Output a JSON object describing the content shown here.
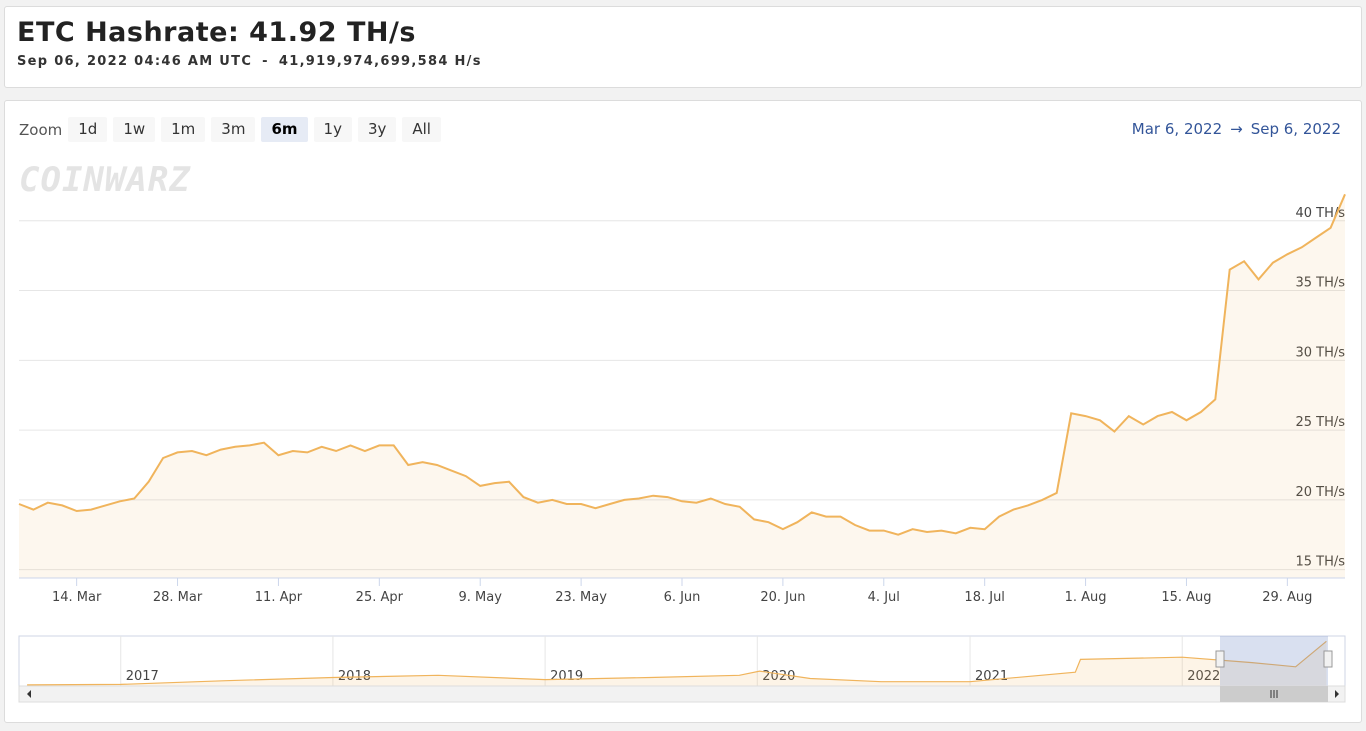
{
  "header": {
    "title": "ETC Hashrate: 41.92 TH/s",
    "timestamp": "Sep 06, 2022 04:46 AM UTC",
    "separator": "-",
    "hashrate_hs": "41,919,974,699,584 H/s"
  },
  "toolbar": {
    "zoom_label": "Zoom",
    "buttons": [
      "1d",
      "1w",
      "1m",
      "3m",
      "6m",
      "1y",
      "3y",
      "All"
    ],
    "selected": 4,
    "range_from": "Mar 6, 2022",
    "range_arrow": "→",
    "range_to": "Sep 6, 2022"
  },
  "watermark": "COINWARZ",
  "chart_data": [
    {
      "type": "area",
      "color": "#f0b45c",
      "x": [
        "2022-03-06",
        "2022-03-08",
        "2022-03-10",
        "2022-03-12",
        "2022-03-14",
        "2022-03-16",
        "2022-03-18",
        "2022-03-20",
        "2022-03-22",
        "2022-03-24",
        "2022-03-26",
        "2022-03-28",
        "2022-03-30",
        "2022-04-01",
        "2022-04-03",
        "2022-04-05",
        "2022-04-07",
        "2022-04-09",
        "2022-04-11",
        "2022-04-13",
        "2022-04-15",
        "2022-04-17",
        "2022-04-19",
        "2022-04-21",
        "2022-04-23",
        "2022-04-25",
        "2022-04-27",
        "2022-04-29",
        "2022-05-01",
        "2022-05-03",
        "2022-05-05",
        "2022-05-07",
        "2022-05-09",
        "2022-05-11",
        "2022-05-13",
        "2022-05-15",
        "2022-05-17",
        "2022-05-19",
        "2022-05-21",
        "2022-05-23",
        "2022-05-25",
        "2022-05-27",
        "2022-05-29",
        "2022-05-31",
        "2022-06-02",
        "2022-06-04",
        "2022-06-06",
        "2022-06-08",
        "2022-06-10",
        "2022-06-12",
        "2022-06-14",
        "2022-06-16",
        "2022-06-18",
        "2022-06-20",
        "2022-06-22",
        "2022-06-24",
        "2022-06-26",
        "2022-06-28",
        "2022-06-30",
        "2022-07-02",
        "2022-07-04",
        "2022-07-06",
        "2022-07-08",
        "2022-07-10",
        "2022-07-12",
        "2022-07-14",
        "2022-07-16",
        "2022-07-18",
        "2022-07-20",
        "2022-07-22",
        "2022-07-24",
        "2022-07-26",
        "2022-07-28",
        "2022-07-30",
        "2022-08-01",
        "2022-08-03",
        "2022-08-05",
        "2022-08-07",
        "2022-08-09",
        "2022-08-11",
        "2022-08-13",
        "2022-08-15",
        "2022-08-17",
        "2022-08-19",
        "2022-08-21",
        "2022-08-23",
        "2022-08-25",
        "2022-08-27",
        "2022-08-29",
        "2022-08-31",
        "2022-09-02",
        "2022-09-04",
        "2022-09-06"
      ],
      "values": [
        19.7,
        19.3,
        19.8,
        19.6,
        19.2,
        19.3,
        19.6,
        19.9,
        20.1,
        21.3,
        23.0,
        23.4,
        23.5,
        23.2,
        23.6,
        23.8,
        23.9,
        24.1,
        23.2,
        23.5,
        23.4,
        23.8,
        23.5,
        23.9,
        23.5,
        23.9,
        23.9,
        22.5,
        22.7,
        22.5,
        22.1,
        21.7,
        21.0,
        21.2,
        21.3,
        20.2,
        19.8,
        20.0,
        19.7,
        19.7,
        19.4,
        19.7,
        20.0,
        20.1,
        20.3,
        20.2,
        19.9,
        19.8,
        20.1,
        19.7,
        19.5,
        18.6,
        18.4,
        17.9,
        18.4,
        19.1,
        18.8,
        18.8,
        18.2,
        17.8,
        17.8,
        17.5,
        17.9,
        17.7,
        17.8,
        17.6,
        18.0,
        17.9,
        18.8,
        19.3,
        19.6,
        20.0,
        20.5,
        26.2,
        26.0,
        25.7,
        24.9,
        26.0,
        25.4,
        26.0,
        26.3,
        25.7,
        26.3,
        27.2,
        36.5,
        37.1,
        35.8,
        37.0,
        37.6,
        38.1,
        38.8,
        39.5,
        41.9
      ],
      "xlim": [
        "2022-03-06",
        "2022-09-06"
      ],
      "xticks": [
        {
          "value": "2022-03-14",
          "label": "14. Mar"
        },
        {
          "value": "2022-03-28",
          "label": "28. Mar"
        },
        {
          "value": "2022-04-11",
          "label": "11. Apr"
        },
        {
          "value": "2022-04-25",
          "label": "25. Apr"
        },
        {
          "value": "2022-05-09",
          "label": "9. May"
        },
        {
          "value": "2022-05-23",
          "label": "23. May"
        },
        {
          "value": "2022-06-06",
          "label": "6. Jun"
        },
        {
          "value": "2022-06-20",
          "label": "20. Jun"
        },
        {
          "value": "2022-07-04",
          "label": "4. Jul"
        },
        {
          "value": "2022-07-18",
          "label": "18. Jul"
        },
        {
          "value": "2022-08-01",
          "label": "1. Aug"
        },
        {
          "value": "2022-08-15",
          "label": "15. Aug"
        },
        {
          "value": "2022-08-29",
          "label": "29. Aug"
        }
      ],
      "ylim": [
        14.4,
        44.5
      ],
      "yticks": [
        {
          "value": 15,
          "label": "15 TH/s"
        },
        {
          "value": 20,
          "label": "20 TH/s"
        },
        {
          "value": 25,
          "label": "25 TH/s"
        },
        {
          "value": 30,
          "label": "30 TH/s"
        },
        {
          "value": 35,
          "label": "35 TH/s"
        },
        {
          "value": 40,
          "label": "40 TH/s"
        }
      ],
      "grid": true
    },
    {
      "type": "area",
      "color": "#f0b45c",
      "x": [
        "2016-07-24",
        "2017-01-01",
        "2017-07-01",
        "2018-01-01",
        "2018-07-01",
        "2019-01-01",
        "2019-07-01",
        "2019-12-01",
        "2020-01-05",
        "2020-04-01",
        "2020-08-01",
        "2021-01-01",
        "2021-07-01",
        "2021-07-10",
        "2022-01-01",
        "2022-05-01",
        "2022-07-15",
        "2022-09-06"
      ],
      "values": [
        1,
        1.5,
        5,
        8,
        10,
        6,
        8,
        10,
        14,
        7,
        4,
        4,
        13,
        25,
        27,
        22,
        18,
        42
      ],
      "xlim": [
        "2016-07-10",
        "2022-10-08"
      ],
      "xticks": [
        {
          "value": "2017-01-01",
          "label": "2017"
        },
        {
          "value": "2018-01-01",
          "label": "2018"
        },
        {
          "value": "2019-01-01",
          "label": "2019"
        },
        {
          "value": "2020-01-01",
          "label": "2020"
        },
        {
          "value": "2021-01-01",
          "label": "2021"
        },
        {
          "value": "2022-01-01",
          "label": "2022"
        }
      ],
      "ylim": [
        0,
        46
      ]
    }
  ]
}
